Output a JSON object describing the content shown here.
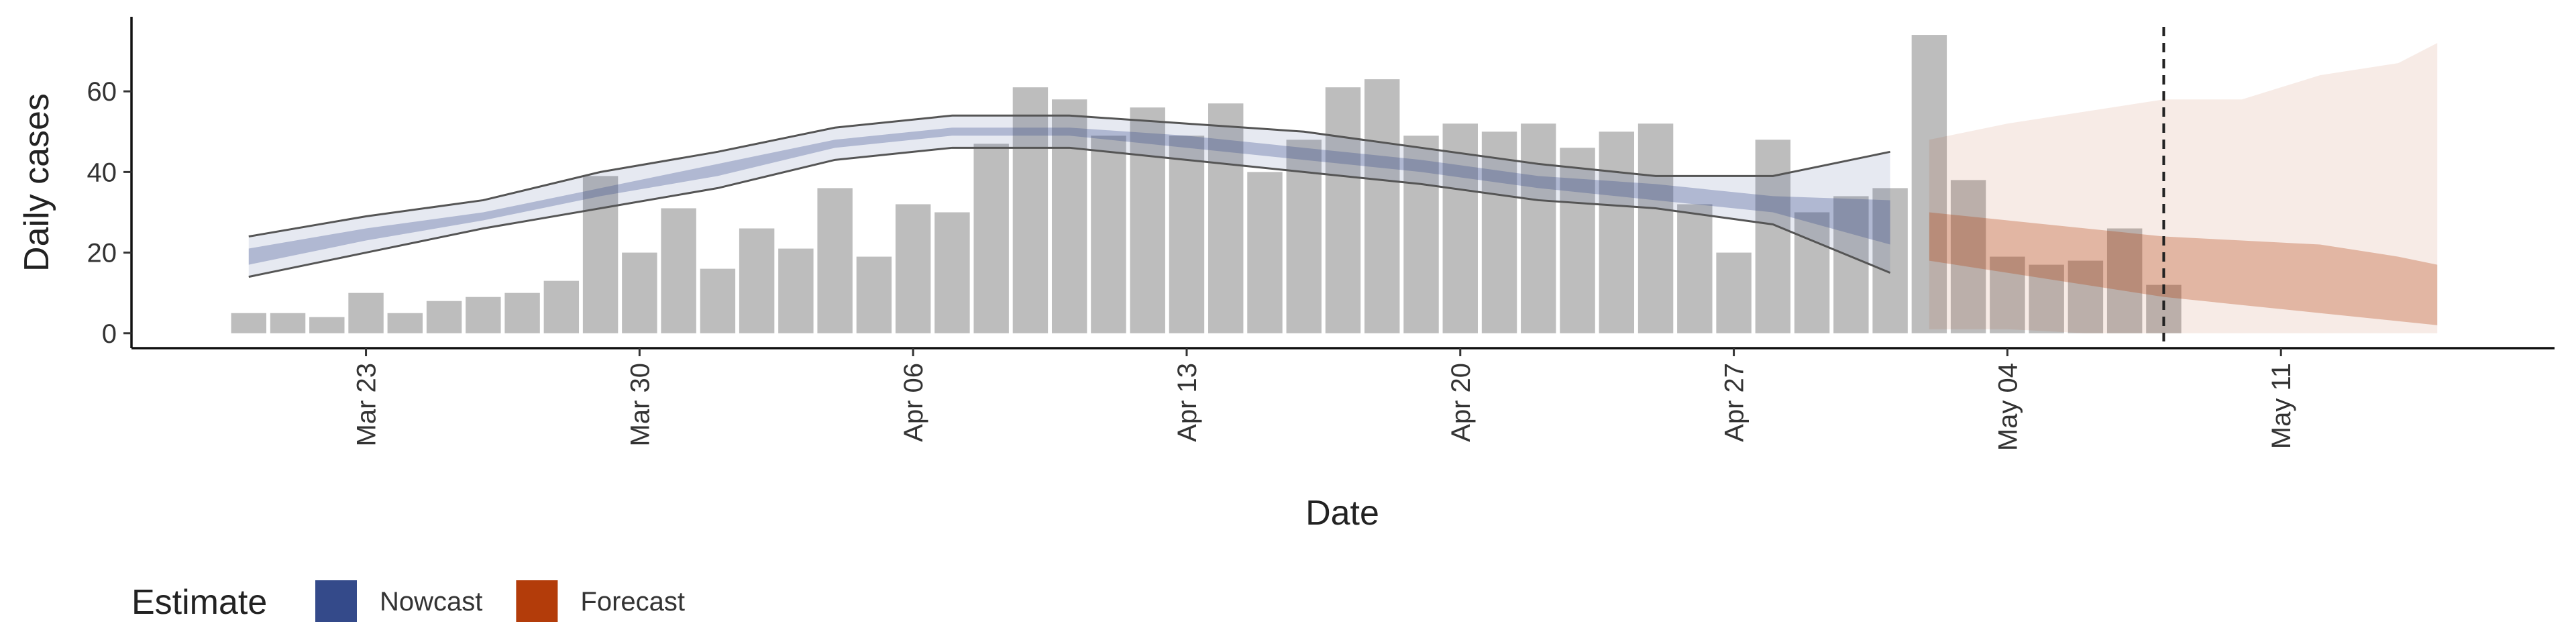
{
  "chart_data": {
    "type": "bar",
    "x_label": "Date",
    "y_label": "Daily cases",
    "color": "#bdbdbd",
    "x": [
      "Mar 20",
      "Mar 21",
      "Mar 22",
      "Mar 23",
      "Mar 24",
      "Mar 25",
      "Mar 26",
      "Mar 27",
      "Mar 28",
      "Mar 29",
      "Mar 30",
      "Mar 31",
      "Apr 1",
      "Apr 2",
      "Apr 3",
      "Apr 4",
      "Apr 5",
      "Apr 6",
      "Apr 7",
      "Apr 8",
      "Apr 9",
      "Apr 10",
      "Apr 11",
      "Apr 12",
      "Apr 13",
      "Apr 14",
      "Apr 15",
      "Apr 16",
      "Apr 17",
      "Apr 18",
      "Apr 19",
      "Apr 20",
      "Apr 21",
      "Apr 22",
      "Apr 23",
      "Apr 24",
      "Apr 25",
      "Apr 26",
      "Apr 27",
      "Apr 28",
      "Apr 29",
      "Apr 30",
      "May 1",
      "May 2",
      "May 3",
      "May 4",
      "May 5",
      "May 6",
      "May 7",
      "May 8"
    ],
    "values": [
      5,
      5,
      4,
      10,
      5,
      8,
      9,
      10,
      13,
      39,
      20,
      31,
      16,
      26,
      21,
      36,
      19,
      32,
      30,
      47,
      61,
      58,
      49,
      56,
      49,
      57,
      40,
      48,
      61,
      63,
      49,
      52,
      50,
      52,
      46,
      50,
      52,
      32,
      20,
      48,
      30,
      34,
      36,
      74,
      38,
      19,
      17,
      18,
      26,
      12
    ],
    "ribbons": [
      {
        "name": "Nowcast",
        "color": "#344a8a",
        "outline": true,
        "x": [
          "Mar 20",
          "Mar 23",
          "Mar 26",
          "Mar 29",
          "Apr 1",
          "Apr 4",
          "Apr 7",
          "Apr 10",
          "Apr 13",
          "Apr 16",
          "Apr 19",
          "Apr 22",
          "Apr 25",
          "Apr 28",
          "May 1"
        ],
        "upper90": [
          24,
          29,
          33,
          40,
          45,
          51,
          54,
          54,
          52,
          50,
          46,
          42,
          39,
          39,
          45
        ],
        "lower90": [
          14,
          20,
          26,
          31,
          36,
          43,
          46,
          46,
          43,
          40,
          37,
          33,
          31,
          27,
          15
        ],
        "upper50": [
          21,
          26,
          30,
          36,
          42,
          48,
          51,
          51,
          49,
          46,
          43,
          39,
          37,
          34,
          33
        ],
        "lower50": [
          17,
          23,
          28,
          34,
          39,
          46,
          49,
          49,
          46,
          43,
          40,
          36,
          33,
          30,
          22
        ]
      },
      {
        "name": "Forecast",
        "color": "#b33c0a",
        "outline": false,
        "x": [
          "May 2",
          "May 4",
          "May 6",
          "May 8",
          "May 10",
          "May 12",
          "May 14",
          "May 15"
        ],
        "upper90": [
          48,
          52,
          55,
          58,
          58,
          64,
          67,
          72
        ],
        "lower90": [
          1,
          1,
          0,
          0,
          0,
          0,
          0,
          0
        ],
        "upper50": [
          30,
          28,
          26,
          24,
          23,
          22,
          19,
          17
        ],
        "lower50": [
          18,
          15,
          12,
          9,
          7,
          5,
          3,
          2
        ]
      }
    ],
    "vline": "May 8",
    "legend_title": "Estimate",
    "legend": "bottom-left",
    "xlim": [
      "Mar 17",
      "May 18"
    ],
    "xticks": [
      "Mar 23",
      "Mar 30",
      "Apr 06",
      "Apr 13",
      "Apr 20",
      "Apr 27",
      "May 04",
      "May 11"
    ],
    "ylim": [
      -3.7,
      78.5
    ],
    "yticks": [
      0,
      20,
      40,
      60
    ]
  }
}
